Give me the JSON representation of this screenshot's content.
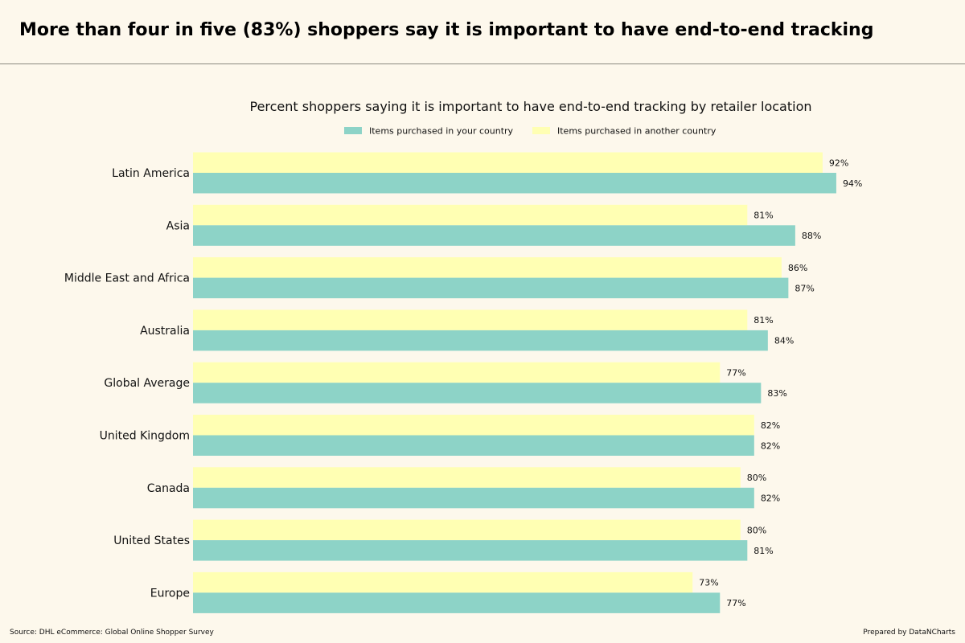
{
  "headline": "More than four in five (83%) shoppers say it is important to have end-to-end tracking",
  "footer": {
    "source": "Source: DHL eCommerce: Global Online Shopper Survey",
    "credit": "Prepared by DataNCharts"
  },
  "chart_data": {
    "type": "bar",
    "orientation": "horizontal",
    "title": "Percent shoppers saying it is important to have end-to-end tracking by retailer location",
    "categories": [
      "Latin America",
      "Asia",
      "Middle East and Africa",
      "Australia",
      "Global Average",
      "United Kingdom",
      "Canada",
      "United States",
      "Europe"
    ],
    "series": [
      {
        "name": "Items purchased in your country",
        "color": "#8dd3c7",
        "values": [
          94,
          88,
          87,
          84,
          83,
          82,
          82,
          81,
          77
        ]
      },
      {
        "name": "Items purchased in another country",
        "color": "#ffffb3",
        "values": [
          92,
          81,
          86,
          81,
          77,
          82,
          80,
          80,
          73
        ]
      }
    ],
    "value_suffix": "%",
    "xlim": [
      0,
      100
    ],
    "x_axis_visible": false,
    "grid": false,
    "legend_position": "top-center"
  }
}
